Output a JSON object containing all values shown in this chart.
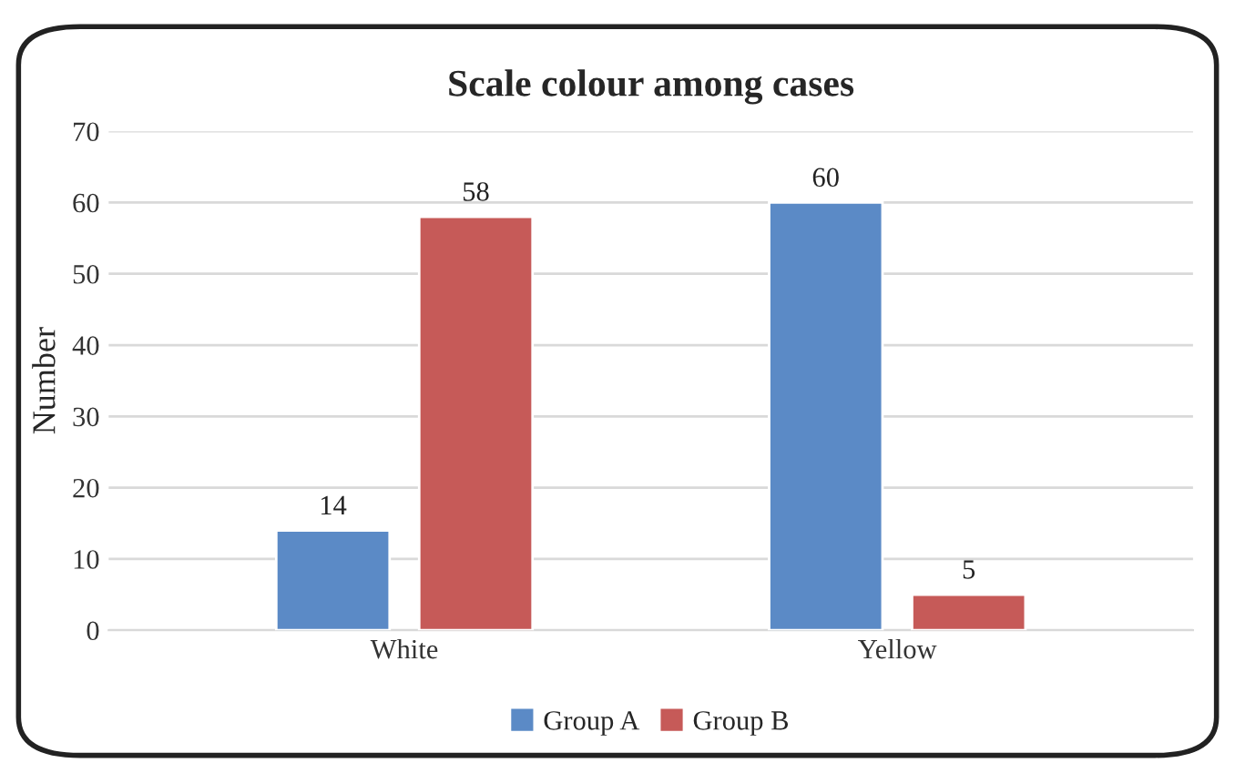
{
  "chart_data": {
    "type": "bar",
    "title": "Scale colour among cases",
    "ylabel": "Number",
    "categories": [
      "White",
      "Yellow"
    ],
    "series": [
      {
        "name": "Group A",
        "color": "#5b8ac6",
        "values": [
          14,
          60
        ]
      },
      {
        "name": "Group B",
        "color": "#c65a58",
        "values": [
          58,
          5
        ]
      }
    ],
    "ylim": [
      0,
      70
    ],
    "yticks": [
      0,
      10,
      20,
      30,
      40,
      50,
      60,
      70
    ],
    "grid": "y",
    "legend": "bottom",
    "data_labels": true
  }
}
